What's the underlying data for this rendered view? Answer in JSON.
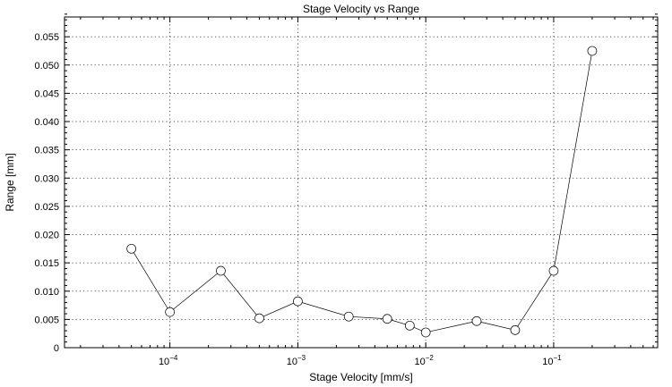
{
  "chart_data": {
    "type": "scatter",
    "title": "Stage Velocity vs Range",
    "xlabel": "Stage Velocity [mm/s]",
    "ylabel": "Range [mm]",
    "xscale": "log",
    "xlim": [
      1.5e-05,
      0.65
    ],
    "ylim": [
      0,
      0.0585
    ],
    "grid": true,
    "marker": "open-circle",
    "line_color": "#000000",
    "marker_fill": "#ffffff",
    "x_major_ticks": [
      {
        "value": 0.0001,
        "base": "10",
        "exponent": "−4"
      },
      {
        "value": 0.001,
        "base": "10",
        "exponent": "−3"
      },
      {
        "value": 0.01,
        "base": "10",
        "exponent": "−2"
      },
      {
        "value": 0.1,
        "base": "10",
        "exponent": "−1"
      }
    ],
    "y_ticks": [
      {
        "value": 0,
        "label": "0"
      },
      {
        "value": 0.005,
        "label": "0.005"
      },
      {
        "value": 0.01,
        "label": "0.010"
      },
      {
        "value": 0.015,
        "label": "0.015"
      },
      {
        "value": 0.02,
        "label": "0.020"
      },
      {
        "value": 0.025,
        "label": "0.025"
      },
      {
        "value": 0.03,
        "label": "0.030"
      },
      {
        "value": 0.035,
        "label": "0.035"
      },
      {
        "value": 0.04,
        "label": "0.040"
      },
      {
        "value": 0.045,
        "label": "0.045"
      },
      {
        "value": 0.05,
        "label": "0.050"
      },
      {
        "value": 0.055,
        "label": "0.055"
      }
    ],
    "y_minor_step": 0.001,
    "series": [
      {
        "x": [
          5e-05,
          0.0001,
          0.00025,
          0.0005,
          0.001,
          0.0025,
          0.005,
          0.0075,
          0.01,
          0.025,
          0.05,
          0.1,
          0.2
        ],
        "y": [
          0.0175,
          0.0063,
          0.0136,
          0.0052,
          0.0082,
          0.0055,
          0.0051,
          0.0039,
          0.0027,
          0.0047,
          0.0031,
          0.0136,
          0.0525
        ]
      }
    ]
  }
}
